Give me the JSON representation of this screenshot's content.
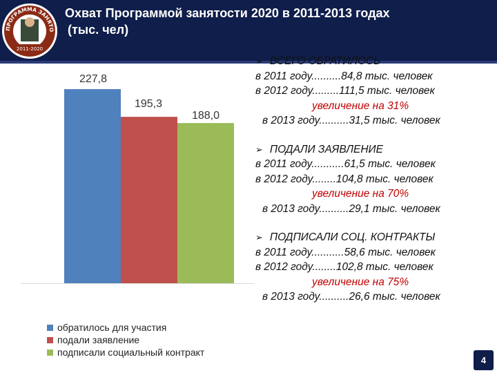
{
  "title": {
    "line1": "Охват Программой занятости 2020 в 2011-2013 годах",
    "line2": "(тыс. чел)"
  },
  "logo": {
    "ring_text": "ПРОГРАММА ЗАНЯТОСТИ",
    "years": "2011-2020"
  },
  "chart_data": {
    "type": "bar",
    "categories": [
      ""
    ],
    "series": [
      {
        "name": "обратилось для участия",
        "values": [
          227.8
        ],
        "label": "227,8",
        "color": "#4f81bd"
      },
      {
        "name": "подали заявление",
        "values": [
          195.3
        ],
        "label": "195,3",
        "color": "#c0504d"
      },
      {
        "name": "подписали социальный контракт",
        "values": [
          188.0
        ],
        "label": "188,0",
        "color": "#9bbb59"
      }
    ],
    "ylim": [
      0,
      240
    ],
    "grid": false,
    "legend": "bottom"
  },
  "info": {
    "sections": [
      {
        "heading": "ВСЕГО ОБРАТИЛОСЬ",
        "lines": [
          "в 2011 году..........84,8  тыс. человек",
          "в 2012 году.........111,5 тыс. человек"
        ],
        "increase": "увеличение на 31%",
        "line2013": "в 2013 году..........31,5 тыс. человек"
      },
      {
        "heading": "ПОДАЛИ ЗАЯВЛЕНИЕ",
        "lines": [
          "в 2011 году...........61,5  тыс. человек",
          "в 2012 году........104,8 тыс.  человек"
        ],
        "increase": "увеличение на 70%",
        "line2013": "в 2013 году..........29,1 тыс. человек"
      },
      {
        "heading": "ПОДПИСАЛИ СОЦ. КОНТРАКТЫ",
        "lines": [
          "в 2011 году...........58,6  тыс. человек",
          "в 2012 году........102,8 тыс.  человек"
        ],
        "increase": "увеличение на 75%",
        "line2013": "в 2013 году..........26,6 тыс. человек"
      }
    ]
  },
  "page_number": "4"
}
